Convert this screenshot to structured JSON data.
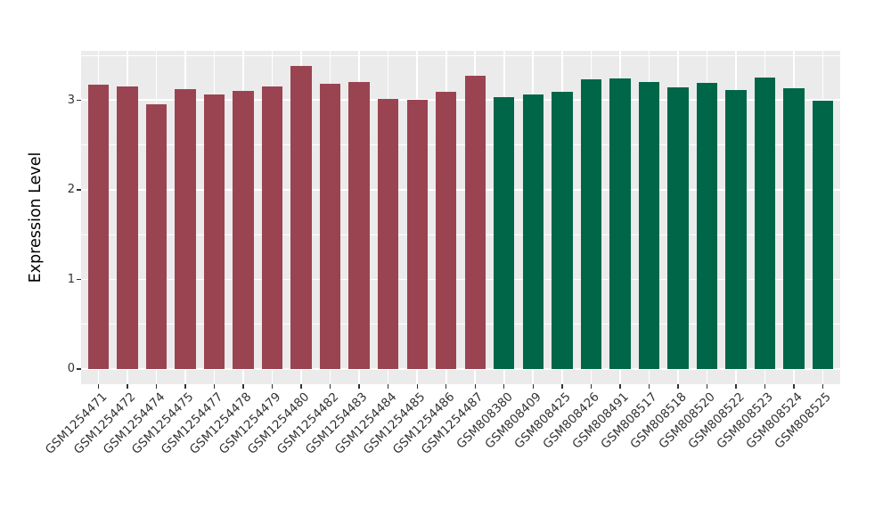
{
  "figure": {
    "background": "#FFFFFF",
    "panel_background": "#EBEBEB",
    "grid_color": "#FFFFFF",
    "axis_text_color": "#333333",
    "tick_color": "#333333"
  },
  "chart_data": {
    "type": "bar",
    "title": "",
    "xlabel": "",
    "ylabel": "Expression Level",
    "yticks": [
      0,
      1,
      2,
      3
    ],
    "y_minor_ticks": [
      0.5,
      1.5,
      2.5,
      3.5
    ],
    "ylim": [
      -0.17,
      3.55
    ],
    "grid": "white major and minor horizontal gridlines plus vertical major gridlines at each bar center, on gray panel",
    "legend_position": "none",
    "bar_colors": [
      "#9A4452",
      "#006648"
    ],
    "series": [
      {
        "color": "#9A4452",
        "categories": [
          "GSM1254471",
          "GSM1254472",
          "GSM1254474",
          "GSM1254475",
          "GSM1254477",
          "GSM1254478",
          "GSM1254479",
          "GSM1254480",
          "GSM1254482",
          "GSM1254483",
          "GSM1254484",
          "GSM1254485",
          "GSM1254486",
          "GSM1254487"
        ],
        "values": [
          3.17,
          3.15,
          2.95,
          3.12,
          3.06,
          3.1,
          3.15,
          3.38,
          3.18,
          3.2,
          3.01,
          3.0,
          3.09,
          3.27
        ]
      },
      {
        "color": "#006648",
        "categories": [
          "GSM808380",
          "GSM808409",
          "GSM808425",
          "GSM808426",
          "GSM808491",
          "GSM808517",
          "GSM808518",
          "GSM808520",
          "GSM808522",
          "GSM808523",
          "GSM808524",
          "GSM808525"
        ],
        "values": [
          3.03,
          3.06,
          3.09,
          3.23,
          3.24,
          3.2,
          3.14,
          3.19,
          3.11,
          3.25,
          3.13,
          2.99
        ]
      }
    ]
  }
}
